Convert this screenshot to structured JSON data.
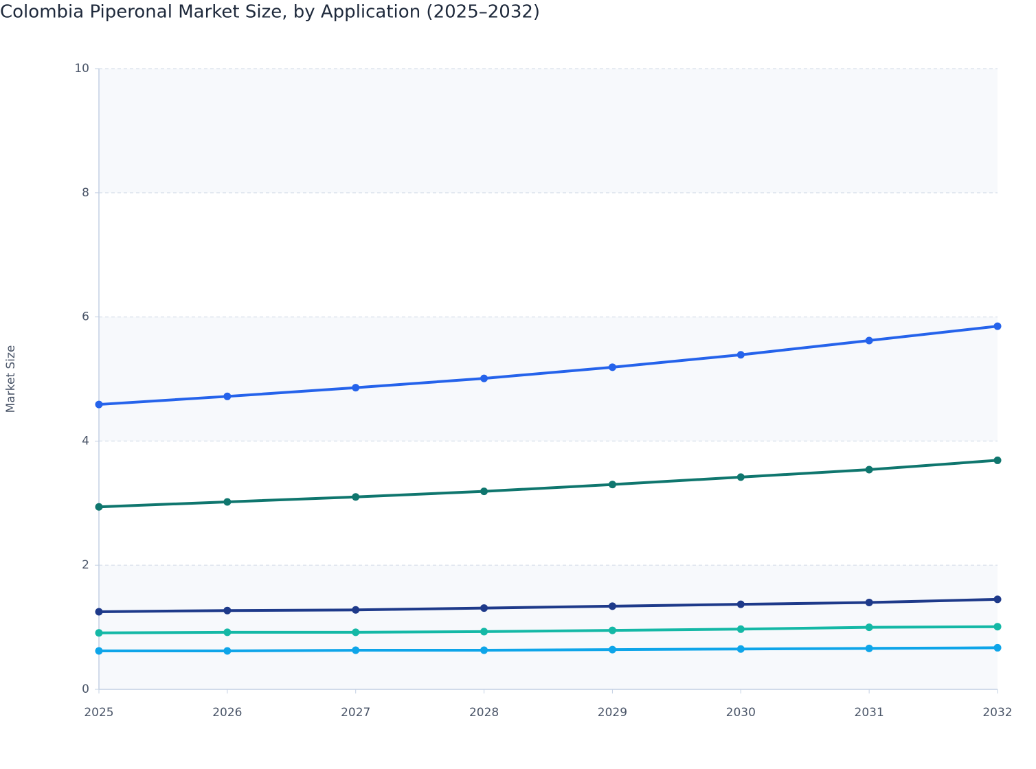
{
  "chart_data": {
    "type": "line",
    "title": "Colombia Piperonal Market Size, by Application (2025–2032)",
    "y_label": "Market Size",
    "x": [
      2025,
      2026,
      2027,
      2028,
      2029,
      2030,
      2031,
      2032
    ],
    "xlim": [
      2025,
      2032
    ],
    "xticks": [
      2025,
      2026,
      2027,
      2028,
      2029,
      2030,
      2031,
      2032
    ],
    "ylim": [
      0,
      10
    ],
    "yticks": [
      0,
      2,
      4,
      6,
      8,
      10
    ],
    "grid": true,
    "series": [
      {
        "color": "#2563eb",
        "values": [
          4.59,
          4.72,
          4.86,
          5.01,
          5.19,
          5.39,
          5.62,
          5.85
        ]
      },
      {
        "color": "#0f766e",
        "values": [
          2.94,
          3.02,
          3.1,
          3.19,
          3.3,
          3.42,
          3.54,
          3.69
        ]
      },
      {
        "color": "#1e3a8a",
        "values": [
          1.25,
          1.27,
          1.28,
          1.31,
          1.34,
          1.37,
          1.4,
          1.45
        ]
      },
      {
        "color": "#14b8a6",
        "values": [
          0.91,
          0.92,
          0.92,
          0.93,
          0.95,
          0.97,
          1.0,
          1.01
        ]
      },
      {
        "color": "#0ea5e9",
        "values": [
          0.62,
          0.62,
          0.63,
          0.63,
          0.64,
          0.65,
          0.66,
          0.67
        ]
      }
    ]
  }
}
